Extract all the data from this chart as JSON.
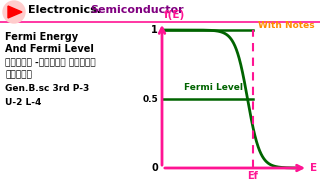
{
  "title_left": "Electronics.  ",
  "title_right": "Semiconductor",
  "title_color": "#000000",
  "title_right_color": "#800080",
  "with_notes": "With Notes",
  "with_notes_color": "#FF8C00",
  "fermi_title1": "Fermi Energy",
  "fermi_title2": "And Fermi Level",
  "hindi_line1": "फर्मी -डिराक ऊर्जा",
  "hindi_line2": "वितरण",
  "gen_line": "Gen.B.sc 3rd P-3",
  "u2_line": "U-2 L-4",
  "ylabel": "f(E)",
  "ylabel_color": "#FF1493",
  "xlabel": "E",
  "xlabel_color": "#FF1493",
  "ef_label": "Ef",
  "ef_label_color": "#FF1493",
  "curve_color": "#006400",
  "axis_color": "#FF1493",
  "fermi_level_label": "Fermi Level",
  "fermi_level_color": "#006400",
  "bg_color": "#FFFFFF",
  "ytick_1": "1",
  "ytick_05": "0.5",
  "ytick_0": "0",
  "dashed_color": "#FF1493",
  "one_color": "#1a6b1a",
  "half_color": "#1a6b1a"
}
